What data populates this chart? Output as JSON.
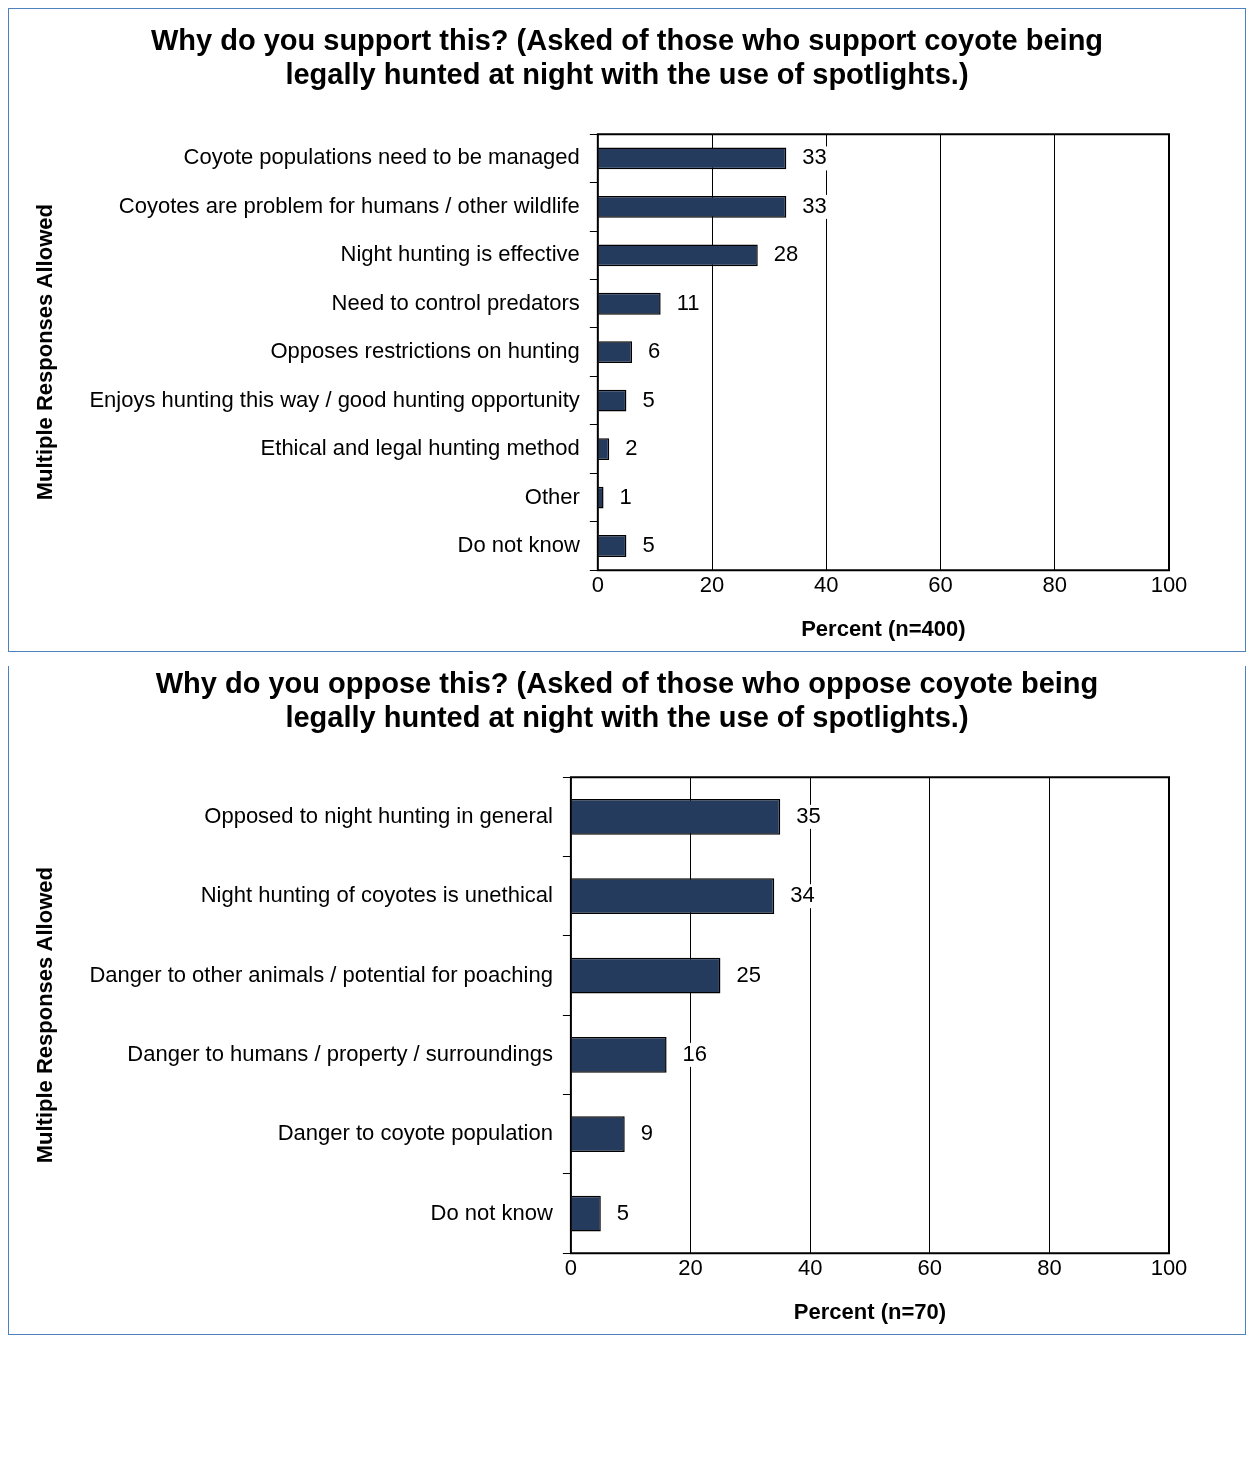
{
  "chart_data": [
    {
      "type": "bar",
      "orientation": "horizontal",
      "title": "Why do you support this? (Asked of those who support coyote being legally hunted at night with the use of spotlights.)",
      "xlabel": "Percent (n=400)",
      "ylabel": "Multiple Responses Allowed",
      "categories": [
        "Coyote populations need to be managed",
        "Coyotes are problem for humans / other wildlife",
        "Night hunting is effective",
        "Need to control predators",
        "Opposes restrictions on hunting",
        "Enjoys hunting this way / good hunting opportunity",
        "Ethical and legal hunting method",
        "Other",
        "Do not know"
      ],
      "values": [
        33,
        33,
        28,
        11,
        6,
        5,
        2,
        1,
        5
      ],
      "color": "#243b5e",
      "xlim": [
        0,
        100
      ],
      "xticks": [
        0,
        20,
        40,
        60,
        80,
        100
      ],
      "grid": "x",
      "data_labels": true
    },
    {
      "type": "bar",
      "orientation": "horizontal",
      "title": "Why do you oppose this? (Asked of those who oppose coyote being legally hunted at night with the use of spotlights.)",
      "xlabel": "Percent (n=70)",
      "ylabel": "Multiple Responses Allowed",
      "categories": [
        "Opposed to night hunting in general",
        "Night hunting of coyotes is unethical",
        "Danger to other animals / potential for poaching",
        "Danger to humans / property / surroundings",
        "Danger to coyote population",
        "Do not know"
      ],
      "values": [
        35,
        34,
        25,
        16,
        9,
        5
      ],
      "color": "#243b5e",
      "xlim": [
        0,
        100
      ],
      "xticks": [
        0,
        20,
        40,
        60,
        80,
        100
      ],
      "grid": "x",
      "data_labels": true
    }
  ]
}
